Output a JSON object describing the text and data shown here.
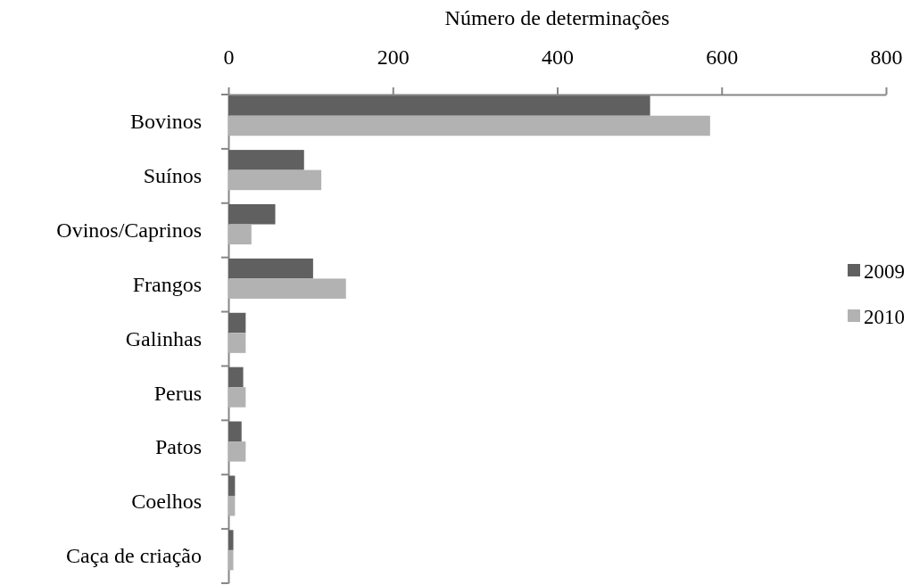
{
  "chart_data": {
    "type": "bar",
    "orientation": "horizontal",
    "xlabel": "Número de determinações",
    "categories": [
      "Bovinos",
      "Suínos",
      "Ovinos/Caprinos",
      "Frangos",
      "Galinhas",
      "Perus",
      "Patos",
      "Coelhos",
      "Caça de criação"
    ],
    "series": [
      {
        "name": "2009",
        "color": "#606060",
        "values": [
          513,
          92,
          57,
          103,
          21,
          18,
          16,
          8,
          6
        ]
      },
      {
        "name": "2010",
        "color": "#b2b2b2",
        "values": [
          586,
          113,
          28,
          143,
          21,
          21,
          21,
          8,
          6
        ]
      }
    ],
    "xlim": [
      0,
      800
    ],
    "xticks": [
      0,
      200,
      400,
      600,
      800
    ],
    "grid": false,
    "legend": "right"
  }
}
